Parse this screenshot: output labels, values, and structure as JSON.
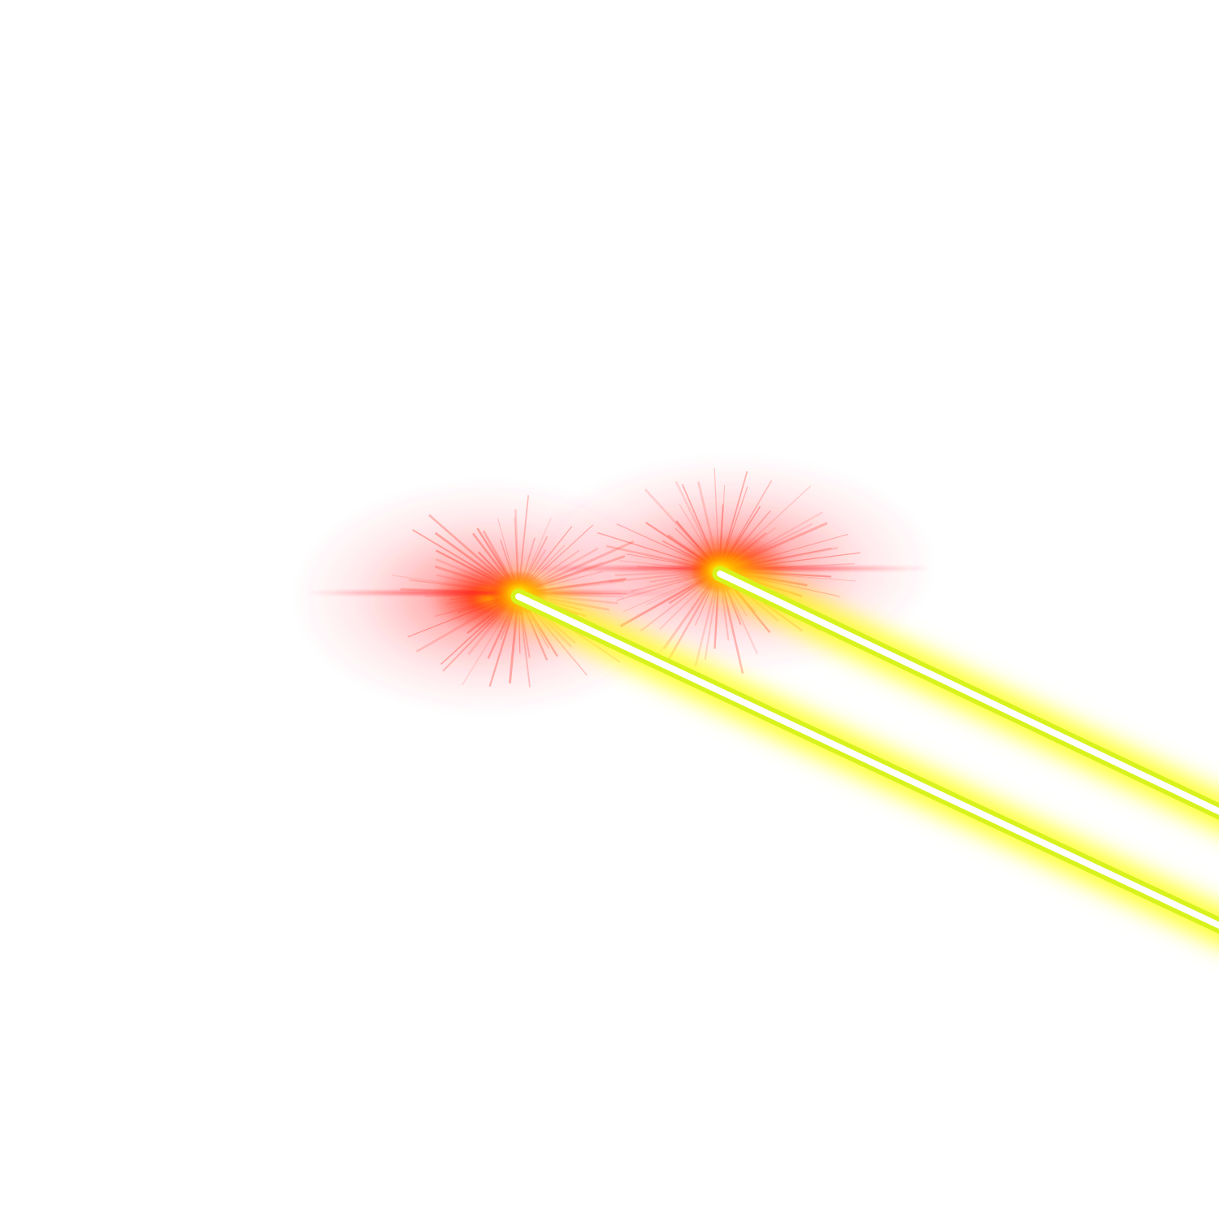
{
  "scene": {
    "background_color": "#ffffff",
    "glow_color": "#ff2a1a",
    "glow_core_color": "#ff7a00",
    "beam_outer_color": "#d7f21c",
    "beam_core_color": "#ffffff",
    "beam_halo_color": "#ffff00",
    "elements": [
      "left-eye-glare",
      "right-eye-glare",
      "left-laser-beam",
      "right-laser-beam"
    ]
  }
}
